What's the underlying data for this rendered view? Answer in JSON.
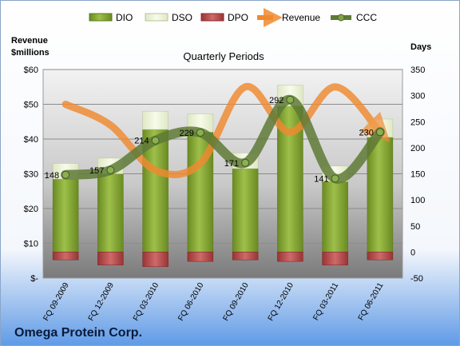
{
  "chart_data": {
    "type": "bar",
    "title": "Quarterly Periods",
    "company": "Omega Protein Corp.",
    "left_axis_label": [
      "Revenue",
      "$millions"
    ],
    "right_axis_label": "Days",
    "categories": [
      "FQ 09-2009",
      "FQ 12-2009",
      "FQ 03-2010",
      "FQ 06-2010",
      "FQ 09-2010",
      "FQ 12-2010",
      "FQ 03-2011",
      "FQ 06-2011"
    ],
    "left_axis": {
      "min": 0,
      "max": 60,
      "step": 10,
      "tick_labels": [
        "$-",
        "$10",
        "$20",
        "$30",
        "$40",
        "$50",
        "$60"
      ]
    },
    "right_axis": {
      "min": -50,
      "max": 350,
      "step": 50,
      "tick_labels": [
        "-50",
        "0",
        "50",
        "100",
        "150",
        "200",
        "250",
        "300",
        "350"
      ]
    },
    "legend_position": "top",
    "series": [
      {
        "name": "DIO",
        "kind": "bar",
        "axis": "right",
        "color": "#7a9a2a",
        "values": [
          140,
          150,
          235,
          230,
          160,
          280,
          135,
          220
        ]
      },
      {
        "name": "DSO",
        "kind": "bar",
        "axis": "right",
        "color": "#e8f0d0",
        "values": [
          30,
          30,
          35,
          35,
          30,
          40,
          30,
          35
        ]
      },
      {
        "name": "DPO",
        "kind": "bar",
        "axis": "right",
        "color": "#b84848",
        "values": [
          -15,
          -25,
          -28,
          -18,
          -15,
          -18,
          -25,
          -15
        ]
      },
      {
        "name": "Revenue",
        "kind": "line",
        "axis": "left",
        "color": "#f08a30",
        "values": [
          50,
          44,
          31,
          33,
          55,
          42,
          55,
          42
        ]
      },
      {
        "name": "CCC",
        "kind": "line",
        "axis": "right",
        "color": "#5e7a36",
        "values": [
          148,
          157,
          214,
          229,
          171,
          292,
          141,
          230
        ],
        "labels": [
          "148",
          "157",
          "214",
          "229",
          "171",
          "292",
          "141",
          "230"
        ]
      }
    ]
  }
}
